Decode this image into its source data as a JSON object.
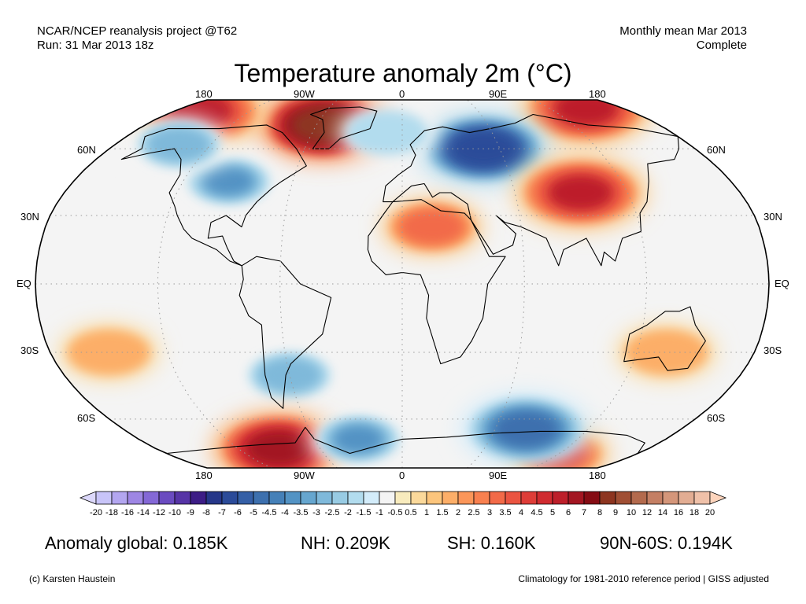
{
  "header": {
    "source": "NCAR/NCEP reanalysis project @T62",
    "run": "Run: 31 Mar 2013 18z",
    "period": "Monthly mean Mar 2013",
    "status": "Complete"
  },
  "title": "Temperature anomaly 2m (°C)",
  "map": {
    "projection": "robinson",
    "background_color": "#f4f4f4",
    "lon_labels_top": [
      "180",
      "90W",
      "0",
      "90E",
      "180"
    ],
    "lon_labels_bottom": [
      "180",
      "90W",
      "0",
      "90E",
      "180"
    ],
    "lat_labels_left": [
      "60N",
      "30N",
      "EQ",
      "30S",
      "60S"
    ],
    "lat_labels_right": [
      "60N",
      "30N",
      "EQ",
      "30S",
      "60S"
    ],
    "anomaly_regions": [
      {
        "name": "greenland-canada-warm",
        "lon": -55,
        "lat": 72,
        "value": 8
      },
      {
        "name": "arctic-pacific-warm",
        "lon": -160,
        "lat": 80,
        "value": 5
      },
      {
        "name": "arctic-siberia-warm",
        "lon": 150,
        "lat": 82,
        "value": 5
      },
      {
        "name": "north-america-cold",
        "lon": -95,
        "lat": 45,
        "value": -4
      },
      {
        "name": "alaska-cold",
        "lon": -140,
        "lat": 62,
        "value": -3
      },
      {
        "name": "europe-russia-cold",
        "lon": 50,
        "lat": 60,
        "value": -7
      },
      {
        "name": "north-atlantic-cold",
        "lon": -10,
        "lat": 68,
        "value": -2
      },
      {
        "name": "central-asia-warm",
        "lon": 95,
        "lat": 40,
        "value": 5
      },
      {
        "name": "sahara-warm",
        "lon": 15,
        "lat": 25,
        "value": 3
      },
      {
        "name": "argentina-cold",
        "lon": -60,
        "lat": -40,
        "value": -3
      },
      {
        "name": "australia-warm",
        "lon": 135,
        "lat": -30,
        "value": 1.5
      },
      {
        "name": "south-pacific-warm",
        "lon": -150,
        "lat": -30,
        "value": 1.5
      },
      {
        "name": "antarctic-peninsula-warm",
        "lon": -90,
        "lat": -75,
        "value": 6
      },
      {
        "name": "east-antarctica-warm",
        "lon": 120,
        "lat": -78,
        "value": 4
      },
      {
        "name": "weddell-cold",
        "lon": -30,
        "lat": -70,
        "value": -4
      },
      {
        "name": "east-antarctica-coast-cold",
        "lon": 80,
        "lat": -65,
        "value": -5
      }
    ]
  },
  "colorbar": {
    "boundaries": [
      "-20",
      "-18",
      "-16",
      "-14",
      "-12",
      "-10",
      "-9",
      "-8",
      "-7",
      "-6",
      "-5",
      "-4.5",
      "-4",
      "-3.5",
      "-3",
      "-2.5",
      "-2",
      "-1.5",
      "-1",
      "-0.5",
      "0.5",
      "1",
      "1.5",
      "2",
      "2.5",
      "3",
      "3.5",
      "4",
      "4.5",
      "5",
      "6",
      "7",
      "8",
      "9",
      "10",
      "12",
      "14",
      "16",
      "18",
      "20"
    ],
    "colors": [
      "#c8c4f8",
      "#b3a6f0",
      "#9e86e4",
      "#8468d6",
      "#6a4bc0",
      "#5634a6",
      "#3d1d86",
      "#263789",
      "#2b4b99",
      "#355fa6",
      "#3d70ae",
      "#4580b8",
      "#5393c4",
      "#66a6cf",
      "#7fb9da",
      "#98cbe3",
      "#b2dcee",
      "#d3ecfa",
      "#f4f4f4",
      "#f8ebbd",
      "#fbd99b",
      "#fcc57c",
      "#fcae68",
      "#fb9659",
      "#f8804f",
      "#f26a48",
      "#ea5441",
      "#de3d38",
      "#d02b30",
      "#bd1f2a",
      "#a31622",
      "#850c14",
      "#8d3520",
      "#a04f34",
      "#b36a4d",
      "#c47f64",
      "#d4967a",
      "#e2ad93",
      "#efc1a9"
    ],
    "under_color": "#dcd8fb",
    "over_color": "#fdd4bc"
  },
  "stats": {
    "global": "Anomaly global: 0.185K",
    "nh": "NH: 0.209K",
    "sh": "SH: 0.160K",
    "band": "90N-60S: 0.194K"
  },
  "footer": {
    "credit": "(c) Karsten Haustein",
    "note": "Climatology for 1981-2010 reference period | GISS adjusted"
  }
}
